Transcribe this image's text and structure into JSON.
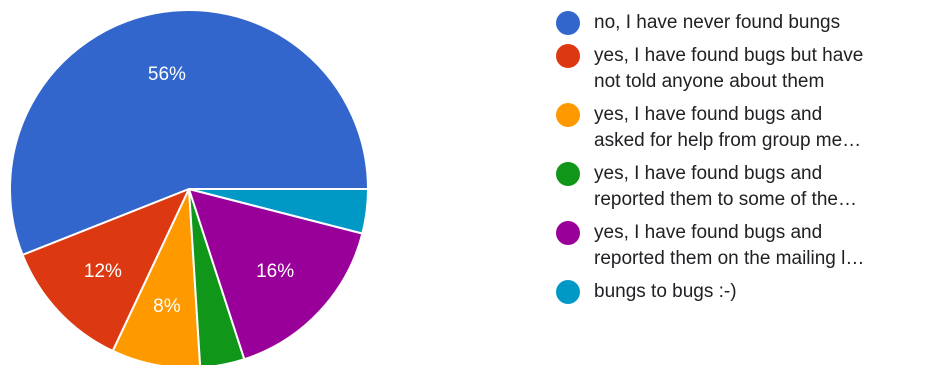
{
  "chart_data": {
    "type": "pie",
    "slices": [
      {
        "name": "no, I have never found bungs",
        "value": 56,
        "label": "56%",
        "color": "#3366cc"
      },
      {
        "name": "yes, I have found bugs but have not told anyone about them",
        "value": 12,
        "label": "12%",
        "color": "#dc3912"
      },
      {
        "name": "yes, I have found bugs and asked for help from group me…",
        "value": 8,
        "label": "8%",
        "color": "#ff9900"
      },
      {
        "name": "yes, I have found bugs and reported them to some of the…",
        "value": 4,
        "label": "",
        "color": "#109618"
      },
      {
        "name": "yes, I have found bugs and reported them on the mailing l…",
        "value": 16,
        "label": "16%",
        "color": "#990099"
      },
      {
        "name": "bungs to bugs :-)",
        "value": 4,
        "label": "",
        "color": "#0099c6"
      }
    ],
    "legend": [
      {
        "lines": [
          "no, I have never found bungs"
        ],
        "color": "#3366cc"
      },
      {
        "lines": [
          "yes, I have found bugs but have",
          "not told anyone about them"
        ],
        "color": "#dc3912"
      },
      {
        "lines": [
          "yes, I have found bugs and",
          "asked for help from group me…"
        ],
        "color": "#ff9900"
      },
      {
        "lines": [
          "yes, I have found bugs and",
          "reported them to some of the…"
        ],
        "color": "#109618"
      },
      {
        "lines": [
          "yes, I have found bugs and",
          "reported them on the mailing l…"
        ],
        "color": "#990099"
      },
      {
        "lines": [
          "bungs to bugs :-)"
        ],
        "color": "#0099c6"
      }
    ],
    "legend_position": "right"
  }
}
